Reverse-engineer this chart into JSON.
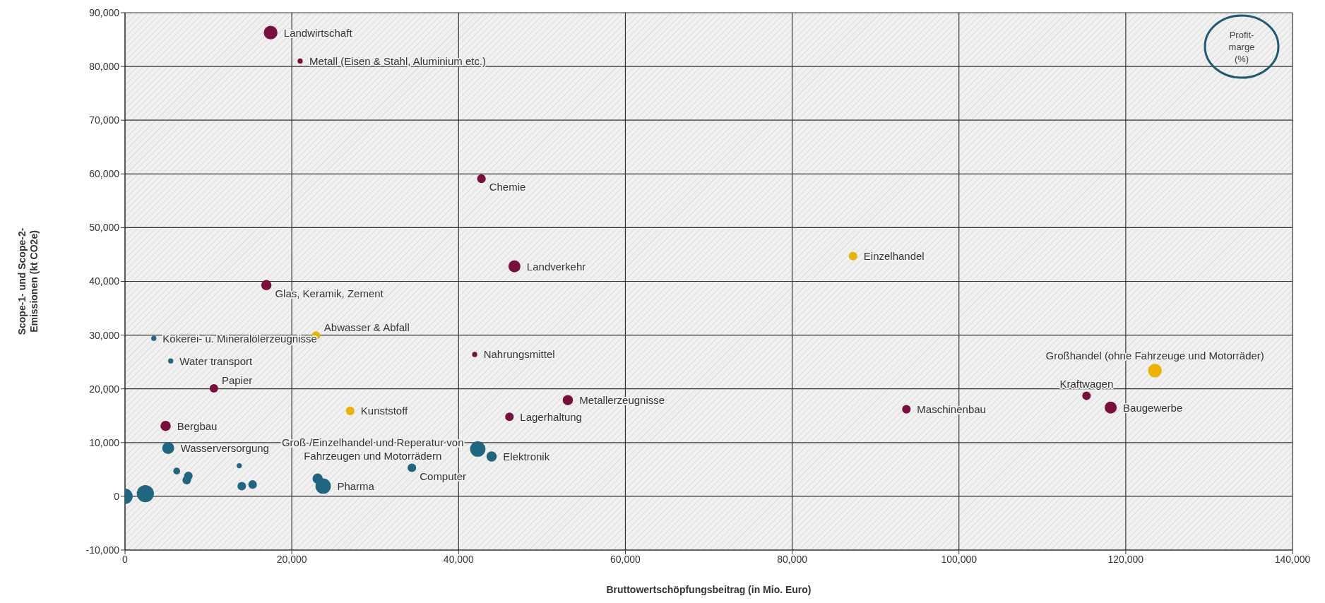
{
  "chart_data": {
    "type": "bubble",
    "xlabel": "Bruttowertschöpfungsbeitrag  (in Mio. Euro)",
    "ylabel": "Scope-1- und Scope-2-Emissionen (kt CO2e)",
    "legend_title": "Profit-marge (%)",
    "grid": true,
    "xlim": [
      0,
      140000
    ],
    "xticks": [
      {
        "value": 0,
        "label": "0"
      },
      {
        "value": 20000,
        "label": "20,000"
      },
      {
        "value": 40000,
        "label": "40,000"
      },
      {
        "value": 60000,
        "label": "60,000"
      },
      {
        "value": 80000,
        "label": "80,000"
      },
      {
        "value": 100000,
        "label": "100,000"
      },
      {
        "value": 120000,
        "label": "120,000"
      },
      {
        "value": 140000,
        "label": "140,000"
      }
    ],
    "ylim": [
      -10000,
      90000
    ],
    "yticks": [
      {
        "value": -10000,
        "label": "-10,000"
      },
      {
        "value": 0,
        "label": "0"
      },
      {
        "value": 10000,
        "label": "10,000"
      },
      {
        "value": 20000,
        "label": "20,000"
      },
      {
        "value": 30000,
        "label": "30,000"
      },
      {
        "value": 40000,
        "label": "40,000"
      },
      {
        "value": 50000,
        "label": "50,000"
      },
      {
        "value": 60000,
        "label": "60,000"
      },
      {
        "value": 70000,
        "label": "70,000"
      },
      {
        "value": 80000,
        "label": "80,000"
      },
      {
        "value": 90000,
        "label": "90,000"
      }
    ],
    "series": [
      {
        "color": "#7a0e3f",
        "x": [
          17460,
          21000,
          42740,
          46700,
          16950,
          10660,
          41930,
          4870,
          53100,
          46100,
          93700,
          115300,
          118200
        ],
        "values": [
          86300,
          81000,
          59100,
          42800,
          39300,
          20100,
          26400,
          13100,
          17900,
          14800,
          16200,
          18700,
          16500
        ],
        "sizes": [
          0.64,
          0.09,
          0.25,
          0.49,
          0.36,
          0.25,
          0.09,
          0.36,
          0.36,
          0.25,
          0.25,
          0.25,
          0.49
        ]
      },
      {
        "color": "#e8b400",
        "x": [
          87300,
          123500,
          22900,
          27000
        ],
        "values": [
          44700,
          23400,
          29900,
          15900
        ],
        "sizes": [
          0.25,
          0.64,
          0.25,
          0.25
        ]
      },
      {
        "color": "#1f6680",
        "x": [
          3450,
          5480,
          5180,
          42300,
          43960,
          34400,
          23760,
          0,
          2440,
          6200,
          7600,
          7400,
          13700,
          14000,
          15300,
          23100
        ],
        "values": [
          29400,
          25200,
          9000,
          8800,
          7400,
          5300,
          1900,
          0,
          500,
          4700,
          3800,
          3000,
          5700,
          1900,
          2200,
          3300
        ],
        "sizes": [
          0.09,
          0.09,
          0.49,
          0.81,
          0.36,
          0.25,
          0.81,
          0.81,
          1,
          0.16,
          0.25,
          0.25,
          0.09,
          0.25,
          0.25,
          0.36
        ]
      }
    ],
    "annotations": [
      {
        "text": "Landwirtschaft",
        "x": 17460,
        "y": 86300
      },
      {
        "text": "Metall (Eisen & Stahl, Aluminium etc.)",
        "x": 21000,
        "y": 81000
      },
      {
        "text": "Chemie",
        "x": 42740,
        "y": 59100
      },
      {
        "text": "Einzelhandel",
        "x": 87300,
        "y": 44700
      },
      {
        "text": "Landverkehr",
        "x": 46700,
        "y": 42800
      },
      {
        "text": "Glas, Keramik, Zement",
        "x": 16950,
        "y": 39300
      },
      {
        "text": "Abwasser & Abfall",
        "x": 22900,
        "y": 29900
      },
      {
        "text": "Kokerei- u. Mineralölerzeugnisse",
        "x": 3450,
        "y": 29400
      },
      {
        "text": "Großhandel (ohne Fahrzeuge und Motorräder)",
        "x": 123500,
        "y": 23400
      },
      {
        "text": "Nahrungsmittel",
        "x": 41930,
        "y": 26400
      },
      {
        "text": "Water transport",
        "x": 5480,
        "y": 25200
      },
      {
        "text": "Papier",
        "x": 10660,
        "y": 20100
      },
      {
        "text": "Kraftwagen",
        "x": 115300,
        "y": 18700
      },
      {
        "text": "Metallerzeugnisse",
        "x": 53100,
        "y": 17900
      },
      {
        "text": "Baugewerbe",
        "x": 118200,
        "y": 16500
      },
      {
        "text": "Maschinenbau",
        "x": 93700,
        "y": 16200
      },
      {
        "text": "Kunststoff",
        "x": 27000,
        "y": 15900
      },
      {
        "text": "Lagerhaltung",
        "x": 46100,
        "y": 14800
      },
      {
        "text": "Bergbau",
        "x": 4870,
        "y": 13100
      },
      {
        "text": "Wasserversorgung",
        "x": 5180,
        "y": 9000
      },
      {
        "text": "Groß-/Einzelhandel und Reperatur von Fahrzeugen und Motorrädern",
        "x": 42300,
        "y": 8800
      },
      {
        "text": "Elektronik",
        "x": 43960,
        "y": 7400
      },
      {
        "text": "Computer",
        "x": 34400,
        "y": 5300
      },
      {
        "text": "Pharma",
        "x": 23760,
        "y": 1900
      }
    ]
  }
}
